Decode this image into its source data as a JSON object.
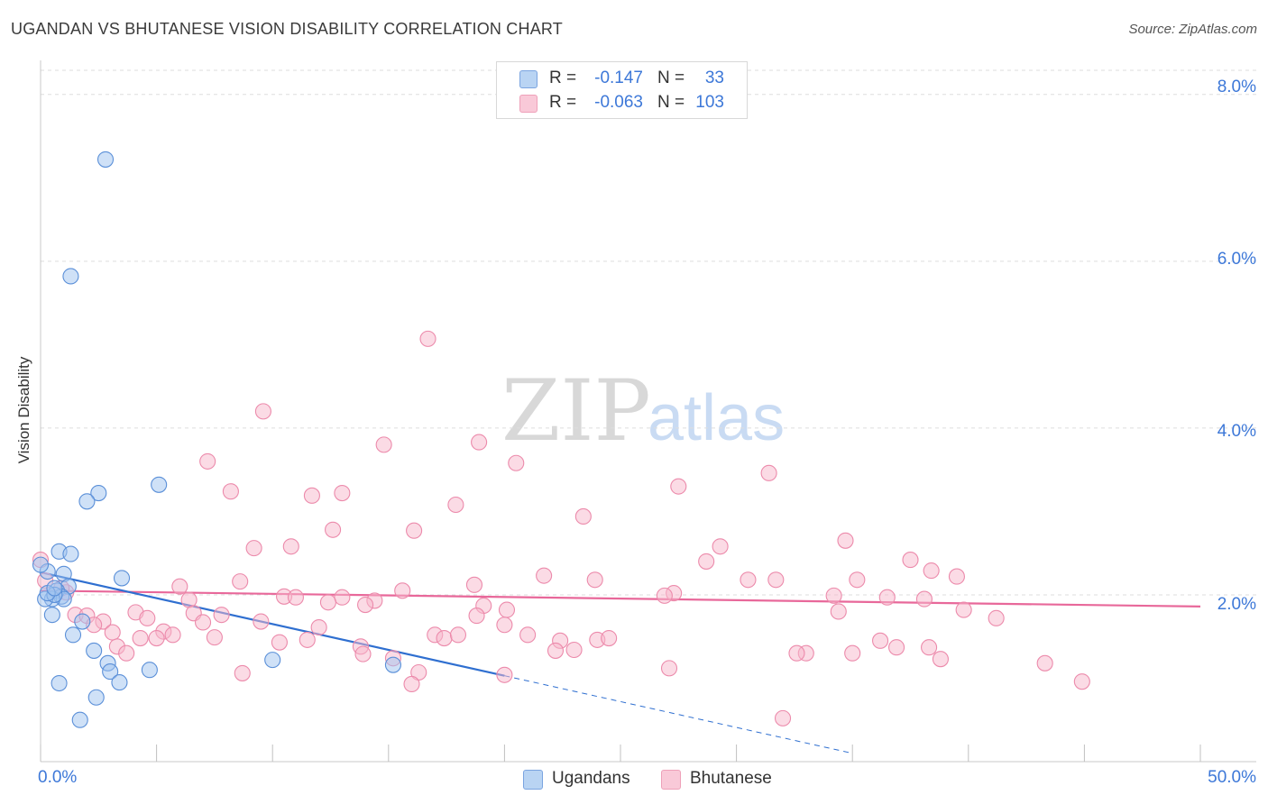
{
  "title": "UGANDAN VS BHUTANESE VISION DISABILITY CORRELATION CHART",
  "source": "Source: ZipAtlas.com",
  "watermark": {
    "bold": "ZIP",
    "light": "atlas"
  },
  "colors": {
    "blue_fill": "#9fc4ef",
    "blue_stroke": "#5a8fd8",
    "blue_line": "#2f6fd0",
    "pink_fill": "#f7b7cb",
    "pink_stroke": "#ec8aab",
    "pink_line": "#e8689a",
    "axis_text": "#3d78d8",
    "grid": "#dddddd"
  },
  "legend_top": {
    "rows": [
      {
        "series": "Ugandans",
        "r_label": "R =",
        "r_value": "-0.147",
        "n_label": "N =",
        "n_value": "33"
      },
      {
        "series": "Bhutanese",
        "r_label": "R =",
        "r_value": "-0.063",
        "n_label": "N =",
        "n_value": "103"
      }
    ]
  },
  "legend_bottom": [
    "Ugandans",
    "Bhutanese"
  ],
  "axis": {
    "x_min_label": "0.0%",
    "x_max_label": "50.0%",
    "y_ticks": [
      "2.0%",
      "4.0%",
      "6.0%",
      "8.0%"
    ]
  },
  "chart_data": {
    "type": "scatter",
    "title": "UGANDAN VS BHUTANESE VISION DISABILITY CORRELATION CHART",
    "xlabel": "",
    "ylabel": "Vision Disability",
    "xlim": [
      0,
      50
    ],
    "ylim": [
      0,
      8.3
    ],
    "y_ticks": [
      2,
      4,
      6,
      8
    ],
    "grid": true,
    "legend": "bottom-center",
    "series": [
      {
        "name": "Ugandans",
        "r": -0.147,
        "n": 33,
        "trend": {
          "x0": 0,
          "y0": 2.27,
          "x1": 20,
          "y1": 1.03,
          "dashed_to_x": 35,
          "dashed_to_y": 0.1
        },
        "points": [
          [
            2.8,
            7.22
          ],
          [
            1.3,
            5.82
          ],
          [
            5.1,
            3.32
          ],
          [
            2.5,
            3.22
          ],
          [
            2.0,
            3.12
          ],
          [
            0.8,
            2.52
          ],
          [
            1.3,
            2.49
          ],
          [
            0.3,
            2.28
          ],
          [
            1.0,
            2.25
          ],
          [
            1.2,
            2.1
          ],
          [
            0.7,
            2.05
          ],
          [
            0.9,
            1.98
          ],
          [
            1.0,
            1.95
          ],
          [
            0.5,
            1.95
          ],
          [
            0.2,
            1.95
          ],
          [
            0.6,
            2.0
          ],
          [
            3.5,
            2.2
          ],
          [
            0.5,
            1.76
          ],
          [
            1.8,
            1.68
          ],
          [
            1.4,
            1.52
          ],
          [
            2.3,
            1.33
          ],
          [
            2.9,
            1.18
          ],
          [
            3.0,
            1.08
          ],
          [
            3.4,
            0.95
          ],
          [
            4.7,
            1.1
          ],
          [
            0.8,
            0.94
          ],
          [
            2.4,
            0.77
          ],
          [
            1.7,
            0.5
          ],
          [
            10.0,
            1.22
          ],
          [
            15.2,
            1.16
          ],
          [
            0.0,
            2.36
          ],
          [
            0.3,
            2.02
          ],
          [
            0.6,
            2.08
          ]
        ]
      },
      {
        "name": "Bhutanese",
        "r": -0.063,
        "n": 103,
        "trend": {
          "x0": 0,
          "y0": 2.05,
          "x1": 50,
          "y1": 1.86
        },
        "points": [
          [
            16.7,
            5.07
          ],
          [
            9.6,
            4.2
          ],
          [
            14.8,
            3.8
          ],
          [
            18.9,
            3.83
          ],
          [
            7.2,
            3.6
          ],
          [
            20.5,
            3.58
          ],
          [
            31.4,
            3.46
          ],
          [
            27.5,
            3.3
          ],
          [
            8.2,
            3.24
          ],
          [
            11.7,
            3.19
          ],
          [
            13.0,
            3.22
          ],
          [
            17.9,
            3.08
          ],
          [
            23.4,
            2.94
          ],
          [
            12.6,
            2.78
          ],
          [
            16.1,
            2.77
          ],
          [
            34.7,
            2.65
          ],
          [
            9.2,
            2.56
          ],
          [
            10.8,
            2.58
          ],
          [
            29.3,
            2.58
          ],
          [
            28.7,
            2.4
          ],
          [
            37.5,
            2.42
          ],
          [
            38.4,
            2.29
          ],
          [
            21.7,
            2.23
          ],
          [
            39.5,
            2.22
          ],
          [
            23.9,
            2.18
          ],
          [
            30.5,
            2.18
          ],
          [
            31.7,
            2.18
          ],
          [
            35.2,
            2.18
          ],
          [
            8.6,
            2.16
          ],
          [
            18.7,
            2.12
          ],
          [
            6.0,
            2.1
          ],
          [
            15.6,
            2.05
          ],
          [
            27.3,
            2.02
          ],
          [
            26.9,
            1.99
          ],
          [
            34.2,
            1.99
          ],
          [
            10.5,
            1.98
          ],
          [
            11.0,
            1.97
          ],
          [
            13.0,
            1.97
          ],
          [
            36.5,
            1.97
          ],
          [
            38.1,
            1.95
          ],
          [
            6.4,
            1.94
          ],
          [
            14.4,
            1.93
          ],
          [
            12.4,
            1.91
          ],
          [
            14.0,
            1.88
          ],
          [
            19.1,
            1.87
          ],
          [
            20.1,
            1.82
          ],
          [
            34.4,
            1.8
          ],
          [
            39.8,
            1.82
          ],
          [
            4.1,
            1.79
          ],
          [
            6.6,
            1.78
          ],
          [
            7.8,
            1.76
          ],
          [
            1.5,
            1.76
          ],
          [
            2.0,
            1.75
          ],
          [
            18.8,
            1.75
          ],
          [
            41.2,
            1.72
          ],
          [
            4.6,
            1.72
          ],
          [
            2.7,
            1.68
          ],
          [
            9.5,
            1.68
          ],
          [
            7.0,
            1.67
          ],
          [
            2.3,
            1.64
          ],
          [
            12.0,
            1.61
          ],
          [
            20.0,
            1.64
          ],
          [
            3.1,
            1.55
          ],
          [
            5.3,
            1.56
          ],
          [
            5.7,
            1.52
          ],
          [
            17.0,
            1.52
          ],
          [
            17.4,
            1.48
          ],
          [
            18.0,
            1.52
          ],
          [
            21.0,
            1.52
          ],
          [
            4.3,
            1.48
          ],
          [
            5.0,
            1.48
          ],
          [
            7.5,
            1.49
          ],
          [
            11.5,
            1.46
          ],
          [
            10.3,
            1.43
          ],
          [
            22.4,
            1.45
          ],
          [
            24.0,
            1.46
          ],
          [
            24.5,
            1.48
          ],
          [
            36.2,
            1.45
          ],
          [
            3.3,
            1.38
          ],
          [
            13.8,
            1.38
          ],
          [
            23.0,
            1.34
          ],
          [
            22.2,
            1.33
          ],
          [
            33.0,
            1.3
          ],
          [
            35.0,
            1.3
          ],
          [
            36.9,
            1.37
          ],
          [
            38.3,
            1.37
          ],
          [
            3.7,
            1.3
          ],
          [
            13.9,
            1.29
          ],
          [
            15.2,
            1.24
          ],
          [
            32.6,
            1.3
          ],
          [
            38.8,
            1.23
          ],
          [
            43.3,
            1.18
          ],
          [
            8.7,
            1.06
          ],
          [
            16.3,
            1.07
          ],
          [
            20.0,
            1.04
          ],
          [
            27.1,
            1.12
          ],
          [
            16.0,
            0.93
          ],
          [
            32.0,
            0.52
          ],
          [
            44.9,
            0.96
          ],
          [
            0.0,
            2.42
          ],
          [
            0.2,
            2.17
          ],
          [
            1.1,
            2.03
          ],
          [
            0.9,
            2.08
          ]
        ]
      }
    ]
  }
}
